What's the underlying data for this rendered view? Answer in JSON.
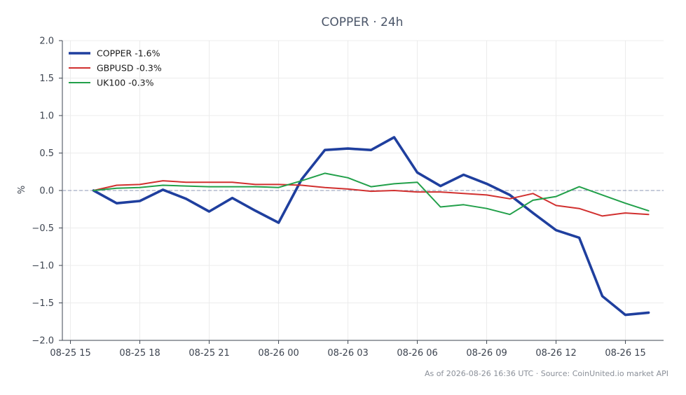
{
  "chart_data": {
    "type": "line",
    "title": "COPPER · 24h",
    "xlabel": "",
    "ylabel": "%",
    "ylim": [
      -2.0,
      2.0
    ],
    "yticks": [
      "2.0",
      "1.5",
      "1.0",
      "0.5",
      "0.0",
      "−0.5",
      "−1.0",
      "−1.5",
      "−2.0"
    ],
    "ytick_values": [
      2.0,
      1.5,
      1.0,
      0.5,
      0.0,
      -0.5,
      -1.0,
      -1.5,
      -2.0
    ],
    "xtick_labels": [
      "08-25 15",
      "08-25 18",
      "08-25 21",
      "08-26 00",
      "08-26 03",
      "08-26 06",
      "08-26 09",
      "08-26 12",
      "08-26 15"
    ],
    "xtick_hours": [
      15,
      18,
      21,
      24,
      27,
      30,
      33,
      36,
      39
    ],
    "x_hours": [
      16,
      17,
      18,
      19,
      20,
      21,
      22,
      23,
      24,
      25,
      26,
      27,
      28,
      29,
      30,
      31,
      32,
      33,
      34,
      35,
      36,
      37,
      38,
      39,
      40
    ],
    "zero_line": true,
    "grid": true,
    "legend_position": "top-left",
    "series": [
      {
        "name": "COPPER -1.6%",
        "color": "#1f3f9e",
        "emphasis": true,
        "values": [
          0.0,
          -0.17,
          -0.14,
          0.01,
          -0.11,
          -0.28,
          -0.1,
          -0.27,
          -0.43,
          0.15,
          0.54,
          0.56,
          0.54,
          0.71,
          0.24,
          0.06,
          0.21,
          0.09,
          -0.06,
          -0.3,
          -0.53,
          -0.63,
          -1.41,
          -1.66,
          -1.63
        ]
      },
      {
        "name": "GBPUSD -0.3%",
        "color": "#d1302f",
        "emphasis": false,
        "values": [
          0.0,
          0.07,
          0.08,
          0.13,
          0.11,
          0.11,
          0.11,
          0.08,
          0.08,
          0.07,
          0.04,
          0.02,
          -0.01,
          0.0,
          -0.02,
          -0.02,
          -0.04,
          -0.06,
          -0.11,
          -0.04,
          -0.2,
          -0.24,
          -0.34,
          -0.3,
          -0.32
        ]
      },
      {
        "name": "UK100 -0.3%",
        "color": "#22a04a",
        "emphasis": false,
        "values": [
          0.0,
          0.03,
          0.04,
          0.07,
          0.06,
          0.05,
          0.05,
          0.05,
          0.04,
          0.13,
          0.23,
          0.17,
          0.05,
          0.09,
          0.11,
          -0.22,
          -0.19,
          -0.24,
          -0.32,
          -0.13,
          -0.08,
          0.05,
          -0.06,
          -0.17,
          -0.27
        ]
      }
    ]
  },
  "footer": "As of 2026-08-26 16:36 UTC · Source: CoinUnited.io market API"
}
